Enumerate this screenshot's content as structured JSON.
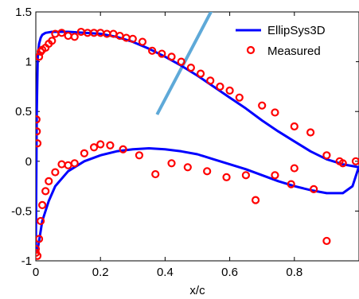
{
  "chart_data": {
    "type": "line",
    "title": "",
    "xlabel": "x/c",
    "ylabel": "",
    "xlim": [
      0,
      1
    ],
    "ylim": [
      -1,
      1.5
    ],
    "x_ticks": [
      "0",
      "0.2",
      "0.4",
      "0.6",
      "0.8"
    ],
    "y_ticks": [
      "-1",
      "-0.5",
      "0",
      "0.5",
      "1",
      "1.5"
    ],
    "x_tick_values": [
      0,
      0.2,
      0.4,
      0.6,
      0.8
    ],
    "y_tick_values": [
      -1,
      -0.5,
      0,
      0.5,
      1,
      1.5
    ],
    "grid": false,
    "legend_position": "top-right",
    "series": [
      {
        "name": "EllipSys3D",
        "kind": "line",
        "color": "#0000ff",
        "segments": [
          {
            "x": [
              0.0,
              0.003,
              0.006,
              0.01,
              0.015,
              0.02,
              0.03,
              0.05,
              0.07,
              0.1,
              0.15,
              0.2,
              0.25,
              0.3,
              0.35,
              0.4,
              0.45,
              0.5,
              0.55,
              0.6,
              0.65,
              0.7,
              0.75,
              0.8,
              0.85,
              0.9,
              0.95,
              1.0
            ],
            "y": [
              -0.9,
              0.5,
              1.05,
              1.18,
              1.24,
              1.27,
              1.29,
              1.3,
              1.3,
              1.3,
              1.29,
              1.28,
              1.25,
              1.2,
              1.13,
              1.05,
              0.96,
              0.86,
              0.75,
              0.64,
              0.53,
              0.41,
              0.3,
              0.2,
              0.1,
              0.02,
              -0.03,
              -0.06
            ]
          },
          {
            "x": [
              0.0,
              0.005,
              0.01,
              0.02,
              0.04,
              0.06,
              0.1,
              0.15,
              0.2,
              0.25,
              0.3,
              0.35,
              0.4,
              0.45,
              0.5,
              0.55,
              0.6,
              0.65,
              0.7,
              0.75,
              0.8,
              0.85,
              0.9,
              0.95,
              0.98,
              1.0
            ],
            "y": [
              -0.92,
              -0.9,
              -0.8,
              -0.6,
              -0.4,
              -0.25,
              -0.1,
              0.0,
              0.06,
              0.1,
              0.12,
              0.13,
              0.12,
              0.1,
              0.07,
              0.02,
              -0.03,
              -0.08,
              -0.14,
              -0.2,
              -0.25,
              -0.29,
              -0.32,
              -0.32,
              -0.25,
              -0.05
            ]
          }
        ]
      },
      {
        "name": "Measured",
        "kind": "scatter",
        "color": "#ff0000",
        "x": [
          0.002,
          0.003,
          0.005,
          0.01,
          0.015,
          0.02,
          0.03,
          0.04,
          0.05,
          0.06,
          0.08,
          0.1,
          0.12,
          0.14,
          0.16,
          0.18,
          0.2,
          0.22,
          0.24,
          0.26,
          0.28,
          0.3,
          0.33,
          0.36,
          0.39,
          0.42,
          0.45,
          0.48,
          0.51,
          0.54,
          0.57,
          0.6,
          0.63,
          0.7,
          0.74,
          0.8,
          0.85,
          0.9,
          0.95,
          0.0,
          0.0,
          0.005,
          0.01,
          0.015,
          0.02,
          0.03,
          0.04,
          0.06,
          0.08,
          0.1,
          0.12,
          0.15,
          0.18,
          0.2,
          0.23,
          0.27,
          0.32,
          0.37,
          0.42,
          0.47,
          0.53,
          0.59,
          0.65,
          0.68,
          0.74,
          0.79,
          0.8,
          0.86,
          0.9,
          0.94,
          0.99
        ],
        "y": [
          0.42,
          0.3,
          0.18,
          1.05,
          1.1,
          1.12,
          1.14,
          1.18,
          1.21,
          1.28,
          1.29,
          1.26,
          1.25,
          1.3,
          1.29,
          1.29,
          1.29,
          1.28,
          1.28,
          1.26,
          1.24,
          1.23,
          1.2,
          1.11,
          1.08,
          1.05,
          1.0,
          0.94,
          0.88,
          0.81,
          0.75,
          0.71,
          0.64,
          0.56,
          0.49,
          0.35,
          0.29,
          0.06,
          -0.02,
          -0.88,
          -0.92,
          -0.95,
          -0.78,
          -0.6,
          -0.44,
          -0.3,
          -0.2,
          -0.11,
          -0.03,
          -0.04,
          -0.02,
          0.08,
          0.14,
          0.17,
          0.16,
          0.12,
          0.06,
          -0.13,
          -0.02,
          -0.06,
          -0.1,
          -0.16,
          -0.14,
          -0.39,
          -0.14,
          -0.23,
          -0.07,
          -0.28,
          -0.8,
          0.0,
          0.0
        ]
      },
      {
        "name": "",
        "kind": "line",
        "color": "#5ea9d8",
        "x": [
          0.375,
          0.55
        ],
        "y": [
          0.47,
          1.55
        ]
      }
    ]
  }
}
